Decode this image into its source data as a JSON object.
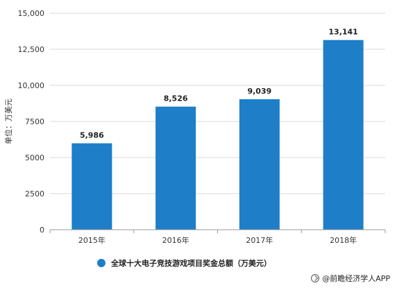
{
  "chart_data": {
    "type": "bar",
    "categories": [
      "2015年",
      "2016年",
      "2017年",
      "2018年"
    ],
    "values": [
      5986,
      8526,
      9039,
      13141
    ],
    "data_labels": [
      "5,986",
      "8,526",
      "9,039",
      "13,141"
    ],
    "ylabel": "单位：万美元",
    "ylim": [
      0,
      15000
    ],
    "yticks": [
      0,
      2500,
      5000,
      7500,
      10000,
      12500,
      15000
    ],
    "ytick_labels": [
      "0",
      "2500",
      "5000",
      "7500",
      "10,000",
      "12,500",
      "15,000"
    ],
    "grid": true,
    "legend_placement": "bottom"
  },
  "legend": {
    "label": "全球十大电子竞技游戏项目奖金总额（万美元）"
  },
  "colors": {
    "bar": "#1e7ec8",
    "grid": "#d9d9d9",
    "axis": "#999999"
  },
  "source": {
    "text": "@前瞻经济学人APP",
    "icon": "logo-icon"
  }
}
